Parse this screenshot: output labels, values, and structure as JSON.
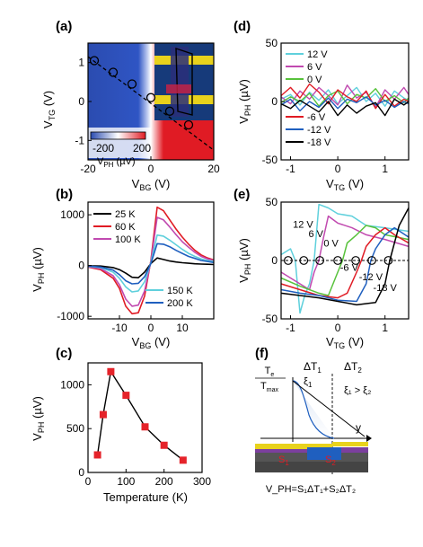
{
  "colors": {
    "black": "#000000",
    "red": "#e01b24",
    "magenta": "#c14ab0",
    "cyan": "#5fd0dc",
    "blue": "#1f5fbf",
    "green": "#58c23c",
    "map_blue": "#2b4cb0",
    "map_red": "#e01b24",
    "square": "#e5232a"
  },
  "chart_data": [
    {
      "panel": "(a)",
      "type": "heatmap",
      "xlabel": "V_BG (V)",
      "ylabel": "V_TG (V)",
      "xlim": [
        -20,
        20
      ],
      "ylim": [
        -1.5,
        1.5
      ],
      "xticks": [
        "-20",
        "0",
        "20"
      ],
      "yticks": [
        "-1",
        "0",
        "1"
      ],
      "colorbar": {
        "label": "V_PH (µV)",
        "min": -200,
        "max": 200,
        "ticks": [
          "-200",
          "200"
        ]
      },
      "dirac_line_points": [
        {
          "x": -18,
          "y": 1.05
        },
        {
          "x": -12,
          "y": 0.75
        },
        {
          "x": -6,
          "y": 0.45
        },
        {
          "x": 0,
          "y": 0.1
        },
        {
          "x": 6,
          "y": -0.25
        },
        {
          "x": 12,
          "y": -0.6
        }
      ]
    },
    {
      "panel": "(b)",
      "type": "line",
      "xlabel": "V_BG (V)",
      "ylabel": "V_PH (µV)",
      "xlim": [
        -20,
        20
      ],
      "ylim": [
        -1050,
        1250
      ],
      "xticks": [
        -10,
        0,
        10
      ],
      "yticks": [
        -1000,
        0,
        1000
      ],
      "x": [
        -20,
        -16,
        -12,
        -10,
        -8,
        -6,
        -4,
        -2,
        0,
        2,
        4,
        6,
        8,
        10,
        12,
        14,
        16,
        18,
        20
      ],
      "series": [
        {
          "name": "25 K",
          "color": "#000000",
          "values": [
            -5,
            -10,
            -40,
            -80,
            -150,
            -230,
            -240,
            -130,
            40,
            150,
            120,
            90,
            70,
            55,
            45,
            35,
            30,
            25,
            20
          ]
        },
        {
          "name": "60 K",
          "color": "#e01b24",
          "values": [
            -30,
            -80,
            -250,
            -450,
            -800,
            -950,
            -930,
            -600,
            100,
            1150,
            1080,
            900,
            720,
            560,
            420,
            300,
            210,
            150,
            110
          ]
        },
        {
          "name": "100 K",
          "color": "#c14ab0",
          "values": [
            -25,
            -60,
            -200,
            -380,
            -660,
            -800,
            -780,
            -500,
            80,
            950,
            900,
            760,
            610,
            470,
            360,
            260,
            180,
            130,
            100
          ]
        },
        {
          "name": "150 K",
          "color": "#5fd0dc",
          "values": [
            -15,
            -40,
            -130,
            -250,
            -420,
            -520,
            -500,
            -320,
            60,
            600,
            580,
            500,
            410,
            320,
            240,
            180,
            130,
            100,
            80
          ]
        },
        {
          "name": "200 K",
          "color": "#1f5fbf",
          "values": [
            -10,
            -30,
            -90,
            -180,
            -300,
            -360,
            -350,
            -220,
            40,
            430,
            420,
            370,
            300,
            240,
            180,
            140,
            100,
            80,
            60
          ]
        }
      ]
    },
    {
      "panel": "(c)",
      "type": "line",
      "xlabel": "Temperature (K)",
      "ylabel": "V_PH (µV)",
      "xlim": [
        0,
        300
      ],
      "ylim": [
        0,
        1250
      ],
      "xticks": [
        0,
        100,
        200,
        300
      ],
      "yticks": [
        0,
        500,
        1000
      ],
      "x": [
        25,
        40,
        60,
        100,
        150,
        200,
        250
      ],
      "values": [
        200,
        660,
        1150,
        880,
        520,
        310,
        140
      ]
    },
    {
      "panel": "(d)",
      "type": "line",
      "xlabel": "V_TG (V)",
      "ylabel": "V_PH (µV)",
      "xlim": [
        -1.2,
        1.5
      ],
      "ylim": [
        -50,
        50
      ],
      "xticks": [
        -1,
        0,
        1
      ],
      "yticks": [
        -50,
        0,
        50
      ],
      "x": [
        -1.2,
        -1.0,
        -0.8,
        -0.6,
        -0.4,
        -0.2,
        0.0,
        0.2,
        0.4,
        0.6,
        0.8,
        1.0,
        1.2,
        1.4,
        1.5
      ],
      "series": [
        {
          "name": "12 V",
          "color": "#5fd0dc",
          "values": [
            2,
            6,
            -3,
            8,
            1,
            10,
            -2,
            5,
            12,
            0,
            7,
            -4,
            9,
            3,
            1
          ]
        },
        {
          "name": "6 V",
          "color": "#c14ab0",
          "values": [
            4,
            -2,
            9,
            2,
            12,
            5,
            -3,
            14,
            3,
            8,
            -5,
            10,
            2,
            12,
            6
          ]
        },
        {
          "name": "0 V",
          "color": "#58c23c",
          "values": [
            -1,
            4,
            0,
            7,
            -4,
            5,
            9,
            -2,
            6,
            3,
            11,
            0,
            5,
            -1,
            3
          ]
        },
        {
          "name": "-6 V",
          "color": "#e01b24",
          "values": [
            5,
            12,
            3,
            15,
            8,
            -2,
            10,
            4,
            0,
            9,
            -6,
            6,
            -4,
            2,
            0
          ]
        },
        {
          "name": "-12 V",
          "color": "#1f5fbf",
          "values": [
            -3,
            2,
            -8,
            0,
            -5,
            3,
            -6,
            2,
            -1,
            4,
            -3,
            1,
            -5,
            0,
            -2
          ]
        },
        {
          "name": "-18 V",
          "color": "#000000",
          "values": [
            -2,
            -6,
            1,
            -4,
            -9,
            0,
            -12,
            -3,
            -10,
            -4,
            -1,
            -12,
            2,
            -3,
            0
          ]
        }
      ],
      "legend_top": [
        "12 V",
        "6 V",
        "0 V"
      ],
      "legend_bottom": [
        "-6 V",
        "-12 V",
        "-18 V"
      ]
    },
    {
      "panel": "(e)",
      "type": "line",
      "xlabel": "V_TG (V)",
      "ylabel": "V_PH (µV)",
      "xlim": [
        -1.2,
        1.5
      ],
      "ylim": [
        -50,
        50
      ],
      "xticks": [
        -1,
        0,
        1
      ],
      "yticks": [
        -50,
        0,
        50
      ],
      "series": [
        {
          "name": "12 V",
          "color": "#5fd0dc",
          "x": [
            -1.2,
            -1.0,
            -0.9,
            -0.8,
            -0.7,
            -0.6,
            -0.5,
            -0.4,
            -0.2,
            0.0,
            0.3,
            0.6,
            1.0,
            1.5
          ],
          "values": [
            5,
            10,
            0,
            -45,
            -30,
            -20,
            0,
            48,
            45,
            40,
            38,
            30,
            28,
            25
          ]
        },
        {
          "name": "6 V",
          "color": "#c14ab0",
          "x": [
            -1.2,
            -0.8,
            -0.6,
            -0.5,
            -0.4,
            -0.3,
            -0.2,
            0.0,
            0.3,
            0.6,
            1.0,
            1.5
          ],
          "values": [
            -10,
            -20,
            -25,
            -10,
            0,
            20,
            38,
            32,
            28,
            22,
            18,
            12
          ]
        },
        {
          "name": "0 V",
          "color": "#58c23c",
          "x": [
            -1.2,
            -0.8,
            -0.4,
            -0.2,
            0.0,
            0.1,
            0.2,
            0.4,
            0.6,
            0.8,
            1.0,
            1.5
          ],
          "values": [
            -15,
            -22,
            -28,
            -30,
            -10,
            0,
            15,
            22,
            30,
            28,
            22,
            18
          ]
        },
        {
          "name": "-6 V",
          "color": "#e01b24",
          "x": [
            -1.2,
            -0.8,
            -0.4,
            0.0,
            0.2,
            0.4,
            0.5,
            0.6,
            0.8,
            1.0,
            1.2,
            1.5
          ],
          "values": [
            -20,
            -25,
            -30,
            -32,
            -28,
            -10,
            0,
            12,
            22,
            28,
            22,
            15
          ]
        },
        {
          "name": "-12 V",
          "color": "#1f5fbf",
          "x": [
            -1.2,
            -0.8,
            -0.4,
            0.0,
            0.4,
            0.6,
            0.7,
            0.8,
            1.0,
            1.2,
            1.5
          ],
          "values": [
            -25,
            -28,
            -30,
            -34,
            -35,
            -20,
            0,
            10,
            22,
            28,
            20
          ]
        },
        {
          "name": "-18 V",
          "color": "#000000",
          "x": [
            -1.2,
            -0.8,
            -0.4,
            0.0,
            0.4,
            0.8,
            1.0,
            1.1,
            1.2,
            1.3,
            1.5
          ],
          "values": [
            -28,
            -30,
            -32,
            -35,
            -38,
            -36,
            -20,
            0,
            15,
            30,
            45
          ]
        }
      ],
      "series_labels": [
        "12 V",
        "6 V",
        "0 V",
        "-6 V",
        "-12 V",
        "-18 V"
      ],
      "zero_crossings_x": [
        -1.05,
        -0.72,
        -0.38,
        0.0,
        0.38,
        0.72,
        1.07
      ]
    }
  ],
  "panel_labels": [
    "(a)",
    "(b)",
    "(c)",
    "(d)",
    "(e)",
    "(f)"
  ],
  "schematic": {
    "panel": "(f)",
    "ratio_top": "T",
    "ratio_top_sub": "e",
    "ratio_bottom": "T",
    "ratio_bottom_sub": "max",
    "delta_t1": "ΔT",
    "delta_t1_sub": "1",
    "delta_t2": "ΔT",
    "delta_t2_sub": "2",
    "xi1": "ξ",
    "xi1_sub": "1",
    "xi_compare": "ξ₁ > ξ₂",
    "y_axis": "y",
    "s1": "S",
    "s1_sub": "1",
    "s2": "S",
    "s2_sub": "2",
    "equation": "V_PH=S₁ΔT₁+S₂ΔT₂"
  },
  "axis_text": {
    "vtg": "V",
    "vtg_sub": "TG",
    "vtg_unit": " (V)",
    "vbg": "V",
    "vbg_sub": "BG",
    "vbg_unit": " (V)",
    "vph": "V",
    "vph_sub": "PH",
    "vph_unit": " (µV)",
    "temp": "Temperature (K)"
  }
}
